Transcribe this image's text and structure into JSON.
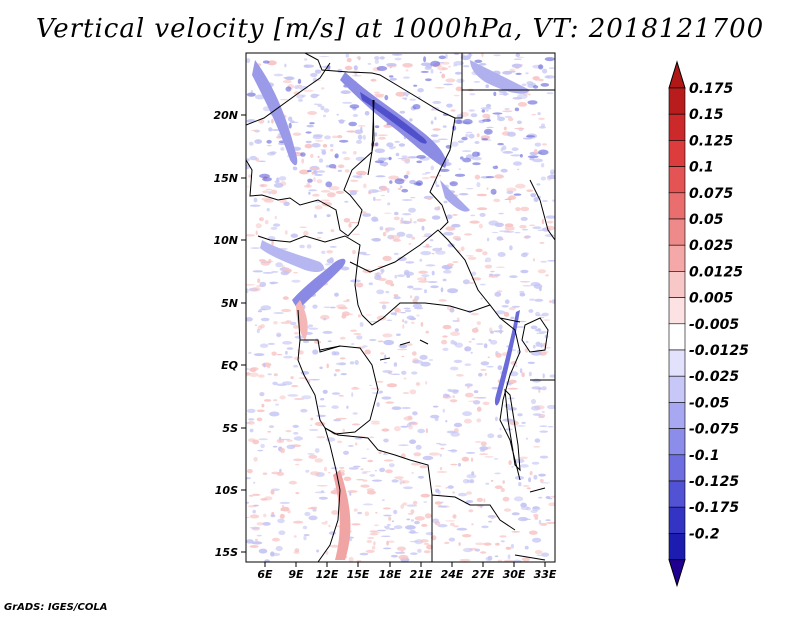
{
  "title": "Vertical velocity [m/s] at 1000hPa, VT: 2018121700",
  "footer": "GrADS: IGES/COLA",
  "map": {
    "lat_labels": [
      "20N",
      "15N",
      "10N",
      "5N",
      "EQ",
      "5S",
      "10S",
      "15S"
    ],
    "lon_labels": [
      "6E",
      "9E",
      "12E",
      "15E",
      "18E",
      "21E",
      "24E",
      "27E",
      "30E",
      "33E"
    ]
  },
  "colorbar": {
    "top_arrow_color": "#b01818",
    "bottom_arrow_color": "#200090",
    "levels": [
      {
        "label": "0.175",
        "color": "#b81c1c"
      },
      {
        "label": "0.15",
        "color": "#cc2a2a"
      },
      {
        "label": "0.125",
        "color": "#dc3c3c"
      },
      {
        "label": "0.1",
        "color": "#e45454"
      },
      {
        "label": "0.075",
        "color": "#ea6e6e"
      },
      {
        "label": "0.05",
        "color": "#ee8a8a"
      },
      {
        "label": "0.025",
        "color": "#f4a8a8"
      },
      {
        "label": "0.0125",
        "color": "#f8c8c8"
      },
      {
        "label": "0.005",
        "color": "#fce2e2"
      },
      {
        "label": "-0.005",
        "color": "#ffffff"
      },
      {
        "label": "-0.0125",
        "color": "#e2e2fc"
      },
      {
        "label": "-0.025",
        "color": "#c8c8f8"
      },
      {
        "label": "-0.05",
        "color": "#a8a8f2"
      },
      {
        "label": "-0.075",
        "color": "#8c8cea"
      },
      {
        "label": "-0.1",
        "color": "#6e6ee0"
      },
      {
        "label": "-0.125",
        "color": "#5252d4"
      },
      {
        "label": "-0.175",
        "color": "#3434c4"
      },
      {
        "label": "-0.2",
        "color": "#1c1cb0"
      }
    ]
  },
  "colors": {
    "red_patch": "#f8c4c4",
    "blue_patch": "#c4c4f4",
    "deep_blue": "#6060d8",
    "border": "#000000"
  }
}
